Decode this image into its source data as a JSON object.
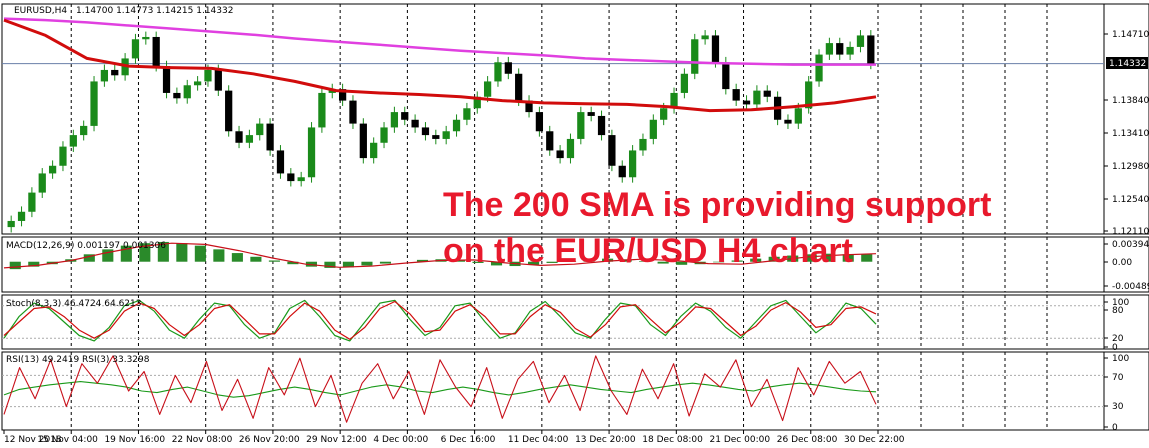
{
  "chart_data": {
    "type": "line",
    "symbol": "EURUSD,H4",
    "ohlc_header": "1.14700 1.14773 1.14215 1.14332",
    "current_price": "1.14332",
    "annotation_lines": [
      "The 200 SMA is providing support",
      "on the EUR/USD H4 chart"
    ],
    "x_ticks": [
      "12 Nov 2018",
      "15 Nov 04:00",
      "19 Nov 16:00",
      "22 Nov 08:00",
      "26 Nov 20:00",
      "29 Nov 12:00",
      "4 Dec 00:00",
      "6 Dec 16:00",
      "11 Dec 04:00",
      "13 Dec 20:00",
      "18 Dec 08:00",
      "21 Dec 00:00",
      "26 Dec 08:00",
      "30 Dec 22:00"
    ],
    "price_panel": {
      "y_ticks": [
        "1.14710",
        "1.13840",
        "1.13410",
        "1.12980",
        "1.12540",
        "1.12110"
      ],
      "ylim": [
        1.1211,
        1.1511
      ],
      "close_series": [
        1.1228,
        1.124,
        1.1265,
        1.129,
        1.13,
        1.1325,
        1.134,
        1.1352,
        1.141,
        1.1425,
        1.1418,
        1.144,
        1.1465,
        1.1468,
        1.143,
        1.1395,
        1.1388,
        1.1405,
        1.141,
        1.1425,
        1.1398,
        1.1345,
        1.133,
        1.134,
        1.1355,
        1.132,
        1.129,
        1.128,
        1.1285,
        1.135,
        1.1395,
        1.14,
        1.1385,
        1.1355,
        1.131,
        1.133,
        1.135,
        1.137,
        1.136,
        1.135,
        1.134,
        1.1335,
        1.1345,
        1.136,
        1.1375,
        1.139,
        1.141,
        1.1435,
        1.142,
        1.1385,
        1.137,
        1.1345,
        1.132,
        1.131,
        1.1335,
        1.137,
        1.1365,
        1.134,
        1.13,
        1.1285,
        1.132,
        1.1335,
        1.136,
        1.1375,
        1.1395,
        1.142,
        1.1465,
        1.147,
        1.1435,
        1.14,
        1.1385,
        1.138,
        1.1398,
        1.139,
        1.136,
        1.1355,
        1.1375,
        1.141,
        1.1445,
        1.146,
        1.1445,
        1.1455,
        1.147,
        1.1433
      ],
      "sma200_magenta": [
        1.1492,
        1.149,
        1.1487,
        1.1483,
        1.1479,
        1.1475,
        1.1471,
        1.1466,
        1.1462,
        1.1458,
        1.1454,
        1.145,
        1.1447,
        1.1444,
        1.144,
        1.1438,
        1.1436,
        1.1434,
        1.1433,
        1.1432,
        1.1432,
        1.1432
      ],
      "ma_red": [
        1.149,
        1.147,
        1.144,
        1.143,
        1.1428,
        1.1427,
        1.142,
        1.141,
        1.1398,
        1.1395,
        1.1393,
        1.139,
        1.1385,
        1.1382,
        1.1381,
        1.138,
        1.1377,
        1.1372,
        1.1373,
        1.1377,
        1.1382,
        1.139
      ]
    },
    "macd_panel": {
      "label": "MACD(12,26,9) 0.001197 0.001306",
      "y_ticks": [
        "0.003945",
        "0.00",
        "-0.00489"
      ],
      "ylim": [
        -0.0049,
        0.004
      ],
      "histogram": [
        -0.0012,
        -0.0008,
        -0.0004,
        0.0004,
        0.0012,
        0.002,
        0.0026,
        0.003,
        0.0032,
        0.003,
        0.0026,
        0.002,
        0.0014,
        0.0008,
        0.0002,
        -0.0004,
        -0.0008,
        -0.001,
        -0.0009,
        -0.0006,
        -0.0003,
        0.0,
        0.0003,
        0.0004,
        0.0002,
        -0.0002,
        -0.0006,
        -0.0007,
        -0.0005,
        -0.0002,
        0.0001,
        0.0003,
        0.0005,
        0.0004,
        0.0001,
        -0.0003,
        -0.0005,
        -0.0004,
        -0.0001,
        0.0002,
        0.0005,
        0.0008,
        0.001,
        0.0012,
        0.0013,
        0.0012,
        0.0012
      ],
      "signal": [
        -0.001,
        -0.0006,
        0.0002,
        0.0014,
        0.0024,
        0.003,
        0.0028,
        0.0018,
        0.0006,
        -0.0004,
        -0.0009,
        -0.0007,
        -0.0002,
        0.0002,
        0.0003,
        -0.0002,
        -0.0006,
        -0.0004,
        0.0001,
        0.0004,
        0.0002,
        -0.0003,
        -0.0004,
        0.0002,
        0.0008,
        0.0011,
        0.0013
      ]
    },
    "stoch_panel": {
      "label": "Stoch(8,3,3) 46.4724 64.6213",
      "y_ticks": [
        "100",
        "80",
        "20",
        "0"
      ],
      "ylim": [
        0,
        100
      ],
      "main": [
        20,
        60,
        85,
        75,
        50,
        25,
        15,
        40,
        80,
        90,
        70,
        35,
        20,
        55,
        85,
        80,
        45,
        20,
        30,
        75,
        90,
        60,
        25,
        15,
        50,
        85,
        90,
        55,
        25,
        40,
        80,
        85,
        50,
        20,
        30,
        70,
        88,
        60,
        30,
        20,
        55,
        85,
        80,
        45,
        25,
        60,
        85,
        70,
        40,
        20,
        50,
        80,
        90,
        60,
        30,
        50,
        85,
        75,
        46
      ],
      "signal": [
        25,
        50,
        75,
        78,
        60,
        35,
        20,
        35,
        70,
        85,
        75,
        45,
        25,
        45,
        75,
        82,
        55,
        28,
        28,
        60,
        85,
        70,
        35,
        18,
        40,
        75,
        88,
        65,
        32,
        35,
        70,
        82,
        60,
        28,
        28,
        60,
        82,
        68,
        38,
        22,
        45,
        78,
        82,
        55,
        30,
        50,
        78,
        75,
        50,
        25,
        42,
        72,
        86,
        68,
        40,
        45,
        75,
        78,
        65
      ]
    },
    "rsi_panel": {
      "label": "RSI(13) 49.2419  RSI(3) 33.3298",
      "y_ticks": [
        "100",
        "70",
        "30",
        "0"
      ],
      "ylim": [
        0,
        100
      ],
      "rsi13": [
        45,
        52,
        55,
        58,
        60,
        62,
        60,
        58,
        55,
        50,
        48,
        52,
        55,
        50,
        45,
        42,
        44,
        48,
        52,
        55,
        52,
        48,
        45,
        50,
        55,
        58,
        55,
        50,
        48,
        52,
        55,
        52,
        48,
        45,
        48,
        52,
        55,
        58,
        55,
        52,
        50,
        48,
        52,
        55,
        58,
        60,
        58,
        55,
        52,
        50,
        55,
        58,
        60,
        58,
        55,
        52,
        50,
        49
      ],
      "rsi3": [
        20,
        80,
        40,
        90,
        30,
        85,
        60,
        95,
        50,
        75,
        20,
        70,
        35,
        88,
        25,
        65,
        15,
        80,
        45,
        92,
        30,
        70,
        10,
        60,
        85,
        40,
        75,
        20,
        90,
        55,
        30,
        80,
        15,
        65,
        88,
        35,
        70,
        25,
        95,
        50,
        20,
        78,
        40,
        85,
        18,
        72,
        55,
        90,
        30,
        65,
        12,
        80,
        45,
        88,
        60,
        75,
        33
      ]
    }
  }
}
